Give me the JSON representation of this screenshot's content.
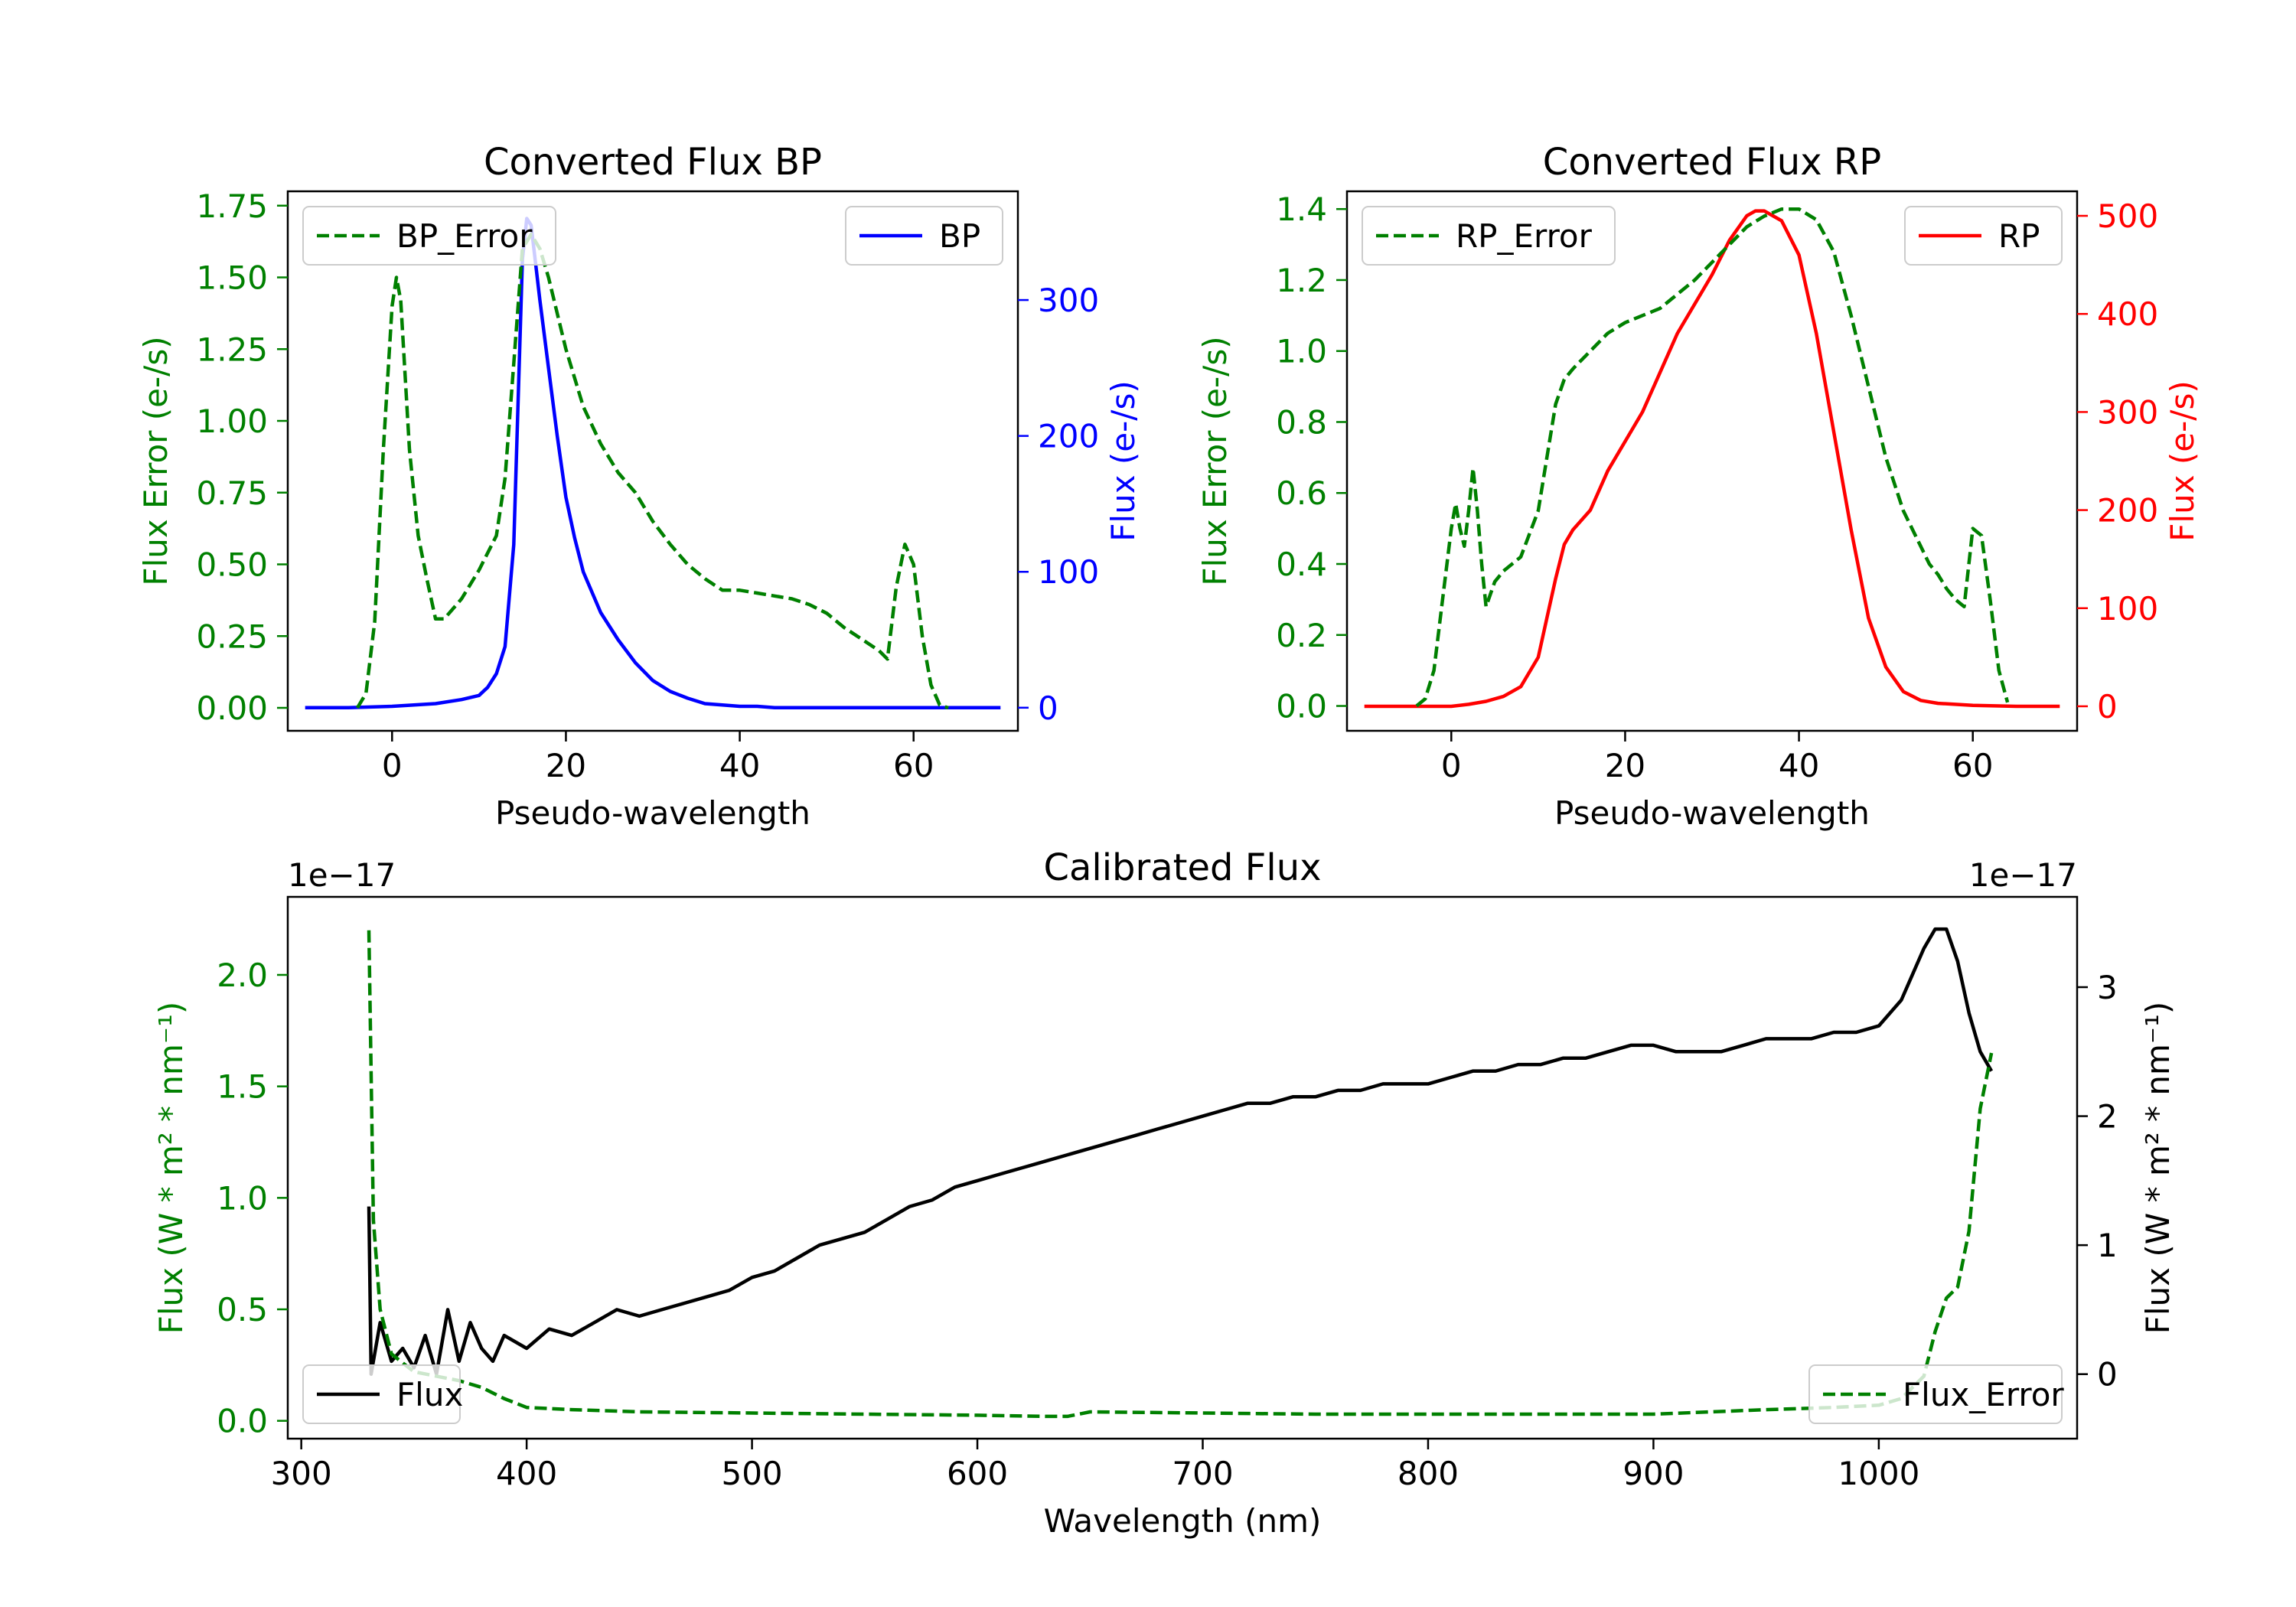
{
  "colors": {
    "bp": "#0000ff",
    "rp": "#ff0000",
    "error": "#008000",
    "flux": "#000000",
    "axis": "#000000"
  },
  "chart_data": [
    {
      "id": "bp",
      "type": "line",
      "title": "Converted Flux BP",
      "xlabel": "Pseudo-wavelength",
      "ylabel_left": "Flux Error (e-/s)",
      "ylabel_right": "Flux (e-/s)",
      "xlim": [
        -12,
        72
      ],
      "ylim_left": [
        -0.08,
        1.8
      ],
      "ylim_right": [
        -17,
        380
      ],
      "xticks": [
        0,
        20,
        40,
        60
      ],
      "yticks_left": [
        "0.00",
        "0.25",
        "0.50",
        "0.75",
        "1.00",
        "1.25",
        "1.50",
        "1.75"
      ],
      "yticks_right": [
        "0",
        "100",
        "200",
        "300"
      ],
      "legend": [
        "BP_Error",
        "BP"
      ],
      "series": [
        {
          "name": "BP_Error",
          "axis": "left",
          "style": "dashed",
          "x": [
            -4,
            -3,
            -2,
            -1,
            0,
            0.5,
            1,
            2,
            3,
            4,
            5,
            6,
            8,
            10,
            12,
            13,
            14,
            15,
            16,
            17,
            18,
            20,
            22,
            24,
            26,
            28,
            30,
            32,
            34,
            36,
            38,
            40,
            42,
            44,
            46,
            48,
            50,
            52,
            54,
            56,
            57,
            58,
            59,
            60,
            61,
            62,
            63,
            64
          ],
          "y": [
            0.0,
            0.05,
            0.3,
            0.9,
            1.4,
            1.5,
            1.42,
            0.9,
            0.6,
            0.45,
            0.31,
            0.31,
            0.38,
            0.48,
            0.6,
            0.8,
            1.2,
            1.6,
            1.65,
            1.6,
            1.5,
            1.25,
            1.05,
            0.92,
            0.82,
            0.75,
            0.65,
            0.57,
            0.5,
            0.45,
            0.41,
            0.41,
            0.4,
            0.39,
            0.38,
            0.36,
            0.33,
            0.28,
            0.24,
            0.2,
            0.17,
            0.42,
            0.57,
            0.5,
            0.25,
            0.08,
            0.01,
            0.0
          ]
        },
        {
          "name": "BP",
          "axis": "right",
          "style": "solid",
          "x": [
            -10,
            -5,
            0,
            5,
            8,
            10,
            11,
            12,
            13,
            14,
            15,
            15.5,
            16,
            17,
            18,
            19,
            20,
            21,
            22,
            23,
            24,
            26,
            28,
            30,
            32,
            34,
            36,
            38,
            40,
            42,
            44,
            50,
            55,
            60,
            65,
            70
          ],
          "y": [
            0,
            0,
            1,
            3,
            6,
            9,
            15,
            25,
            45,
            120,
            330,
            360,
            355,
            300,
            250,
            200,
            155,
            125,
            100,
            85,
            70,
            50,
            33,
            20,
            12,
            7,
            3,
            2,
            1,
            1,
            0,
            0,
            0,
            0,
            0,
            0
          ]
        }
      ]
    },
    {
      "id": "rp",
      "type": "line",
      "title": "Converted Flux RP",
      "xlabel": "Pseudo-wavelength",
      "ylabel_left": "Flux Error (e-/s)",
      "ylabel_right": "Flux (e-/s)",
      "xlim": [
        -12,
        72
      ],
      "ylim_left": [
        -0.07,
        1.45
      ],
      "ylim_right": [
        -25,
        525
      ],
      "xticks": [
        0,
        20,
        40,
        60
      ],
      "yticks_left": [
        "0.0",
        "0.2",
        "0.4",
        "0.6",
        "0.8",
        "1.0",
        "1.2",
        "1.4"
      ],
      "yticks_right": [
        "0",
        "100",
        "200",
        "300",
        "400",
        "500"
      ],
      "legend": [
        "RP_Error",
        "RP"
      ],
      "series": [
        {
          "name": "RP_Error",
          "axis": "left",
          "style": "dashed",
          "x": [
            -4,
            -3,
            -2,
            -1,
            0,
            0.5,
            1,
            1.5,
            2,
            2.5,
            3,
            3.5,
            4,
            5,
            6,
            8,
            10,
            11,
            12,
            13,
            14,
            16,
            18,
            20,
            22,
            24,
            26,
            28,
            30,
            32,
            34,
            36,
            38,
            40,
            42,
            44,
            46,
            48,
            50,
            52,
            54,
            55,
            56,
            57,
            58,
            59,
            60,
            61,
            62,
            63,
            64
          ],
          "y": [
            0.0,
            0.02,
            0.1,
            0.3,
            0.5,
            0.57,
            0.5,
            0.45,
            0.55,
            0.67,
            0.55,
            0.4,
            0.28,
            0.35,
            0.38,
            0.42,
            0.55,
            0.7,
            0.85,
            0.92,
            0.95,
            1.0,
            1.05,
            1.08,
            1.1,
            1.12,
            1.16,
            1.2,
            1.25,
            1.3,
            1.35,
            1.38,
            1.4,
            1.4,
            1.37,
            1.28,
            1.1,
            0.9,
            0.7,
            0.55,
            0.45,
            0.4,
            0.37,
            0.33,
            0.3,
            0.28,
            0.5,
            0.48,
            0.3,
            0.1,
            0.01
          ]
        },
        {
          "name": "RP",
          "axis": "right",
          "style": "solid",
          "x": [
            -10,
            -5,
            0,
            2,
            4,
            6,
            8,
            10,
            11,
            12,
            13,
            14,
            16,
            18,
            20,
            22,
            24,
            26,
            28,
            30,
            32,
            34,
            35,
            36,
            37,
            38,
            40,
            42,
            44,
            46,
            48,
            50,
            52,
            54,
            56,
            60,
            65,
            70
          ],
          "y": [
            0,
            0,
            0,
            2,
            5,
            10,
            20,
            50,
            90,
            130,
            165,
            180,
            200,
            240,
            270,
            300,
            340,
            380,
            410,
            440,
            475,
            500,
            505,
            505,
            500,
            495,
            460,
            380,
            280,
            180,
            90,
            40,
            15,
            6,
            3,
            1,
            0,
            0
          ]
        }
      ]
    },
    {
      "id": "calibrated",
      "type": "line",
      "title": "Calibrated Flux",
      "xlabel": "Wavelength (nm)",
      "ylabel_left": "Flux (W * m² * nm⁻¹)",
      "ylabel_right": "Flux (W * m² * nm⁻¹)",
      "offset_left": "1e−17",
      "offset_right": "1e−17",
      "xlim": [
        294,
        1088
      ],
      "ylim_left": [
        -0.08,
        2.35
      ],
      "ylim_right": [
        -0.5,
        3.7
      ],
      "xticks": [
        "300",
        "400",
        "500",
        "600",
        "700",
        "800",
        "900",
        "1000"
      ],
      "yticks_left": [
        "0.0",
        "0.5",
        "1.0",
        "1.5",
        "2.0"
      ],
      "yticks_right": [
        "0",
        "1",
        "2",
        "3"
      ],
      "legend": [
        "Flux",
        "Flux_Error"
      ],
      "series": [
        {
          "name": "Flux_Error",
          "axis": "left",
          "style": "dashed",
          "x": [
            330,
            332,
            335,
            340,
            350,
            360,
            370,
            380,
            390,
            400,
            420,
            450,
            500,
            550,
            600,
            630,
            640,
            650,
            700,
            750,
            800,
            850,
            900,
            950,
            980,
            1000,
            1010,
            1020,
            1025,
            1030,
            1035,
            1040,
            1045,
            1050
          ],
          "y": [
            2.2,
            0.9,
            0.5,
            0.3,
            0.22,
            0.2,
            0.18,
            0.15,
            0.1,
            0.06,
            0.05,
            0.04,
            0.035,
            0.03,
            0.025,
            0.02,
            0.02,
            0.04,
            0.035,
            0.03,
            0.03,
            0.03,
            0.03,
            0.05,
            0.06,
            0.07,
            0.1,
            0.2,
            0.4,
            0.55,
            0.6,
            0.85,
            1.4,
            1.65
          ]
        },
        {
          "name": "Flux",
          "axis": "right",
          "style": "solid",
          "x": [
            330,
            331,
            335,
            340,
            345,
            350,
            355,
            360,
            365,
            370,
            375,
            380,
            385,
            390,
            400,
            410,
            420,
            430,
            440,
            450,
            460,
            470,
            480,
            490,
            500,
            510,
            520,
            530,
            540,
            550,
            560,
            570,
            580,
            590,
            600,
            610,
            620,
            630,
            640,
            650,
            660,
            670,
            680,
            690,
            700,
            710,
            720,
            730,
            740,
            750,
            760,
            770,
            780,
            790,
            800,
            810,
            820,
            830,
            840,
            850,
            860,
            870,
            880,
            890,
            900,
            910,
            920,
            930,
            940,
            950,
            960,
            970,
            980,
            990,
            1000,
            1010,
            1020,
            1025,
            1030,
            1035,
            1040,
            1045,
            1050
          ],
          "y": [
            1.3,
            0.0,
            0.4,
            0.1,
            0.2,
            0.05,
            0.3,
            0.0,
            0.5,
            0.1,
            0.4,
            0.2,
            0.1,
            0.3,
            0.2,
            0.35,
            0.3,
            0.4,
            0.5,
            0.45,
            0.5,
            0.55,
            0.6,
            0.65,
            0.75,
            0.8,
            0.9,
            1.0,
            1.05,
            1.1,
            1.2,
            1.3,
            1.35,
            1.45,
            1.5,
            1.55,
            1.6,
            1.65,
            1.7,
            1.75,
            1.8,
            1.85,
            1.9,
            1.95,
            2.0,
            2.05,
            2.1,
            2.1,
            2.15,
            2.15,
            2.2,
            2.2,
            2.25,
            2.25,
            2.25,
            2.3,
            2.35,
            2.35,
            2.4,
            2.4,
            2.45,
            2.45,
            2.5,
            2.55,
            2.55,
            2.5,
            2.5,
            2.5,
            2.55,
            2.6,
            2.6,
            2.6,
            2.65,
            2.65,
            2.7,
            2.9,
            3.3,
            3.45,
            3.45,
            3.2,
            2.8,
            2.5,
            2.35
          ]
        }
      ]
    }
  ]
}
